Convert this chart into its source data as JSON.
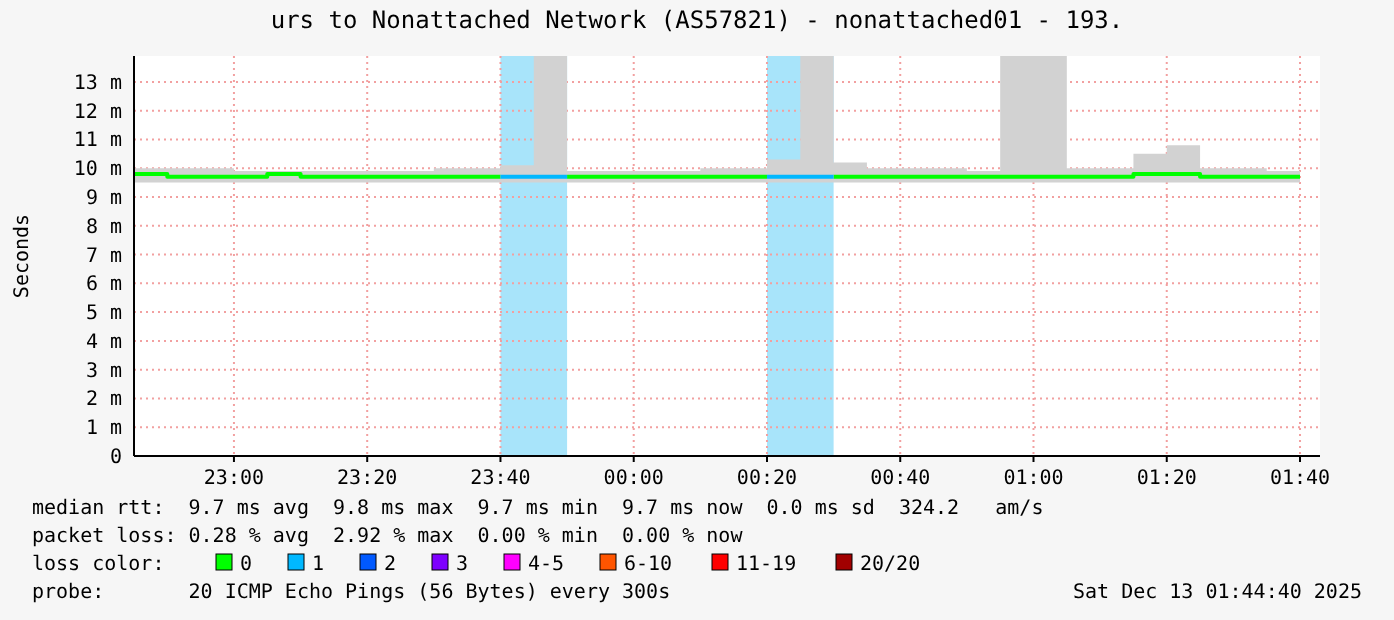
{
  "chart_data": {
    "type": "step",
    "title": "urs to Nonattached Network (AS57821) - nonattached01 - 193.",
    "ylabel": "Seconds",
    "legend_title": "loss color:",
    "legend": "bottom",
    "grid": true,
    "x": [
      "2025-12-12T22:45",
      "2025-12-12T22:50",
      "2025-12-12T22:55",
      "2025-12-12T23:00",
      "2025-12-12T23:05",
      "2025-12-12T23:10",
      "2025-12-12T23:15",
      "2025-12-12T23:20",
      "2025-12-12T23:25",
      "2025-12-12T23:30",
      "2025-12-12T23:35",
      "2025-12-12T23:40",
      "2025-12-12T23:45",
      "2025-12-12T23:50",
      "2025-12-12T23:55",
      "2025-12-13T00:00",
      "2025-12-13T00:05",
      "2025-12-13T00:10",
      "2025-12-13T00:15",
      "2025-12-13T00:20",
      "2025-12-13T00:25",
      "2025-12-13T00:30",
      "2025-12-13T00:35",
      "2025-12-13T00:40",
      "2025-12-13T00:45",
      "2025-12-13T00:50",
      "2025-12-13T00:55",
      "2025-12-13T01:00",
      "2025-12-13T01:05",
      "2025-12-13T01:10",
      "2025-12-13T01:15",
      "2025-12-13T01:20",
      "2025-12-13T01:25",
      "2025-12-13T01:30",
      "2025-12-13T01:35",
      "2025-12-13T01:40"
    ],
    "xlim": [
      "2025-12-12T22:45",
      "2025-12-13T01:43"
    ],
    "xticks": [
      {
        "value": "2025-12-12T23:00",
        "label": "23:00"
      },
      {
        "value": "2025-12-12T23:20",
        "label": "23:20"
      },
      {
        "value": "2025-12-12T23:40",
        "label": "23:40"
      },
      {
        "value": "2025-12-13T00:00",
        "label": "00:00"
      },
      {
        "value": "2025-12-13T00:20",
        "label": "00:20"
      },
      {
        "value": "2025-12-13T00:40",
        "label": "00:40"
      },
      {
        "value": "2025-12-13T01:00",
        "label": "01:00"
      },
      {
        "value": "2025-12-13T01:20",
        "label": "01:20"
      },
      {
        "value": "2025-12-13T01:40",
        "label": "01:40"
      }
    ],
    "ylim": [
      0,
      13.9
    ],
    "yticks": [
      0,
      {
        "value": 1,
        "label": "1 m"
      },
      {
        "value": 2,
        "label": "2 m"
      },
      {
        "value": 3,
        "label": "3 m"
      },
      {
        "value": 4,
        "label": "4 m"
      },
      {
        "value": 5,
        "label": "5 m"
      },
      {
        "value": 6,
        "label": "6 m"
      },
      {
        "value": 7,
        "label": "7 m"
      },
      {
        "value": 8,
        "label": "8 m"
      },
      {
        "value": 9,
        "label": "9 m"
      },
      {
        "value": 10,
        "label": "10 m"
      },
      {
        "value": 11,
        "label": "11 m"
      },
      {
        "value": 12,
        "label": "12 m"
      },
      {
        "value": 13,
        "label": "13 m"
      }
    ],
    "bands": [
      {
        "axis": "x",
        "from": "2025-12-12T23:40",
        "to": "2025-12-12T23:50",
        "color": "#a8e4fa"
      },
      {
        "axis": "x",
        "from": "2025-12-13T00:20",
        "to": "2025-12-13T00:30",
        "color": "#a8e4fa"
      }
    ],
    "series": [
      {
        "name": "0",
        "color": "#00ff00",
        "lower": [
          9.5,
          9.5,
          9.5,
          9.5,
          9.5,
          9.5,
          9.5,
          9.5,
          9.5,
          9.5,
          9.5,
          9.5,
          9.5,
          9.5,
          9.5,
          9.5,
          9.5,
          9.5,
          9.5,
          9.5,
          9.5,
          9.5,
          9.5,
          9.5,
          9.5,
          9.5,
          9.5,
          9.5,
          9.5,
          9.5,
          9.5,
          9.5,
          9.5,
          9.5,
          9.5,
          9.5
        ],
        "upper": [
          10,
          10,
          10,
          9.9,
          9.9,
          9.9,
          9.9,
          9.9,
          9.9,
          10,
          10,
          10.1,
          13.9,
          9.9,
          9.9,
          9.9,
          9.9,
          10,
          10,
          10.3,
          13.9,
          10.2,
          10,
          10,
          10,
          9.9,
          13.9,
          13.9,
          10,
          10,
          10.5,
          10.8,
          10,
          10,
          9.9,
          9.9
        ],
        "values": [
          9.8,
          9.7,
          9.7,
          9.7,
          9.8,
          9.7,
          9.7,
          9.7,
          9.7,
          9.7,
          9.7,
          9.7,
          null,
          9.7,
          9.7,
          9.7,
          9.7,
          9.7,
          9.7,
          9.7,
          null,
          9.7,
          9.7,
          9.7,
          9.7,
          9.7,
          9.7,
          9.7,
          9.7,
          9.7,
          9.8,
          9.8,
          9.7,
          9.7,
          9.7,
          9.7
        ]
      },
      {
        "name": "1",
        "color": "#00b8ff",
        "values": [
          null,
          null,
          null,
          null,
          null,
          null,
          null,
          null,
          null,
          null,
          null,
          9.7,
          9.7,
          9.7,
          null,
          null,
          null,
          null,
          null,
          9.7,
          9.7,
          9.7,
          null,
          null,
          null,
          null,
          null,
          null,
          null,
          null,
          null,
          null,
          null,
          null,
          null,
          null
        ]
      },
      {
        "name": "2",
        "color": "#0059ff",
        "values": [
          null,
          null,
          null,
          null,
          null,
          null,
          null,
          null,
          null,
          null,
          null,
          null,
          null,
          null,
          null,
          null,
          null,
          null,
          null,
          null,
          null,
          null,
          null,
          null,
          null,
          null,
          null,
          null,
          null,
          null,
          null,
          null,
          null,
          null,
          null,
          null
        ]
      },
      {
        "name": "3",
        "color": "#7e00ff",
        "values": [
          null,
          null,
          null,
          null,
          null,
          null,
          null,
          null,
          null,
          null,
          null,
          null,
          null,
          null,
          null,
          null,
          null,
          null,
          null,
          null,
          null,
          null,
          null,
          null,
          null,
          null,
          null,
          null,
          null,
          null,
          null,
          null,
          null,
          null,
          null,
          null
        ]
      },
      {
        "name": "4-5",
        "color": "#ff00ff",
        "values": [
          null,
          null,
          null,
          null,
          null,
          null,
          null,
          null,
          null,
          null,
          null,
          null,
          null,
          null,
          null,
          null,
          null,
          null,
          null,
          null,
          null,
          null,
          null,
          null,
          null,
          null,
          null,
          null,
          null,
          null,
          null,
          null,
          null,
          null,
          null,
          null
        ]
      },
      {
        "name": "6-10",
        "color": "#ff5500",
        "values": [
          null,
          null,
          null,
          null,
          null,
          null,
          null,
          null,
          null,
          null,
          null,
          null,
          null,
          null,
          null,
          null,
          null,
          null,
          null,
          null,
          null,
          null,
          null,
          null,
          null,
          null,
          null,
          null,
          null,
          null,
          null,
          null,
          null,
          null,
          null,
          null
        ]
      },
      {
        "name": "11-19",
        "color": "#ff0000",
        "values": [
          null,
          null,
          null,
          null,
          null,
          null,
          null,
          null,
          null,
          null,
          null,
          null,
          null,
          null,
          null,
          null,
          null,
          null,
          null,
          null,
          null,
          null,
          null,
          null,
          null,
          null,
          null,
          null,
          null,
          null,
          null,
          null,
          null,
          null,
          null,
          null
        ]
      },
      {
        "name": "20/20",
        "color": "#a10000",
        "values": [
          null,
          null,
          null,
          null,
          null,
          null,
          null,
          null,
          null,
          null,
          null,
          null,
          null,
          null,
          null,
          null,
          null,
          null,
          null,
          null,
          null,
          null,
          null,
          null,
          null,
          null,
          null,
          null,
          null,
          null,
          null,
          null,
          null,
          null,
          null,
          null
        ]
      }
    ],
    "annotations": [
      "median rtt:  9.7 ms avg  9.8 ms max  9.7 ms min  9.7 ms now  0.0 ms sd  324.2   am/s",
      "packet loss: 0.28 % avg  2.92 % max  0.00 % min  0.00 % now",
      "probe:       20 ICMP Echo Pings (56 Bytes) every 300s",
      "Sat Dec 13 01:44:40 2025"
    ]
  }
}
